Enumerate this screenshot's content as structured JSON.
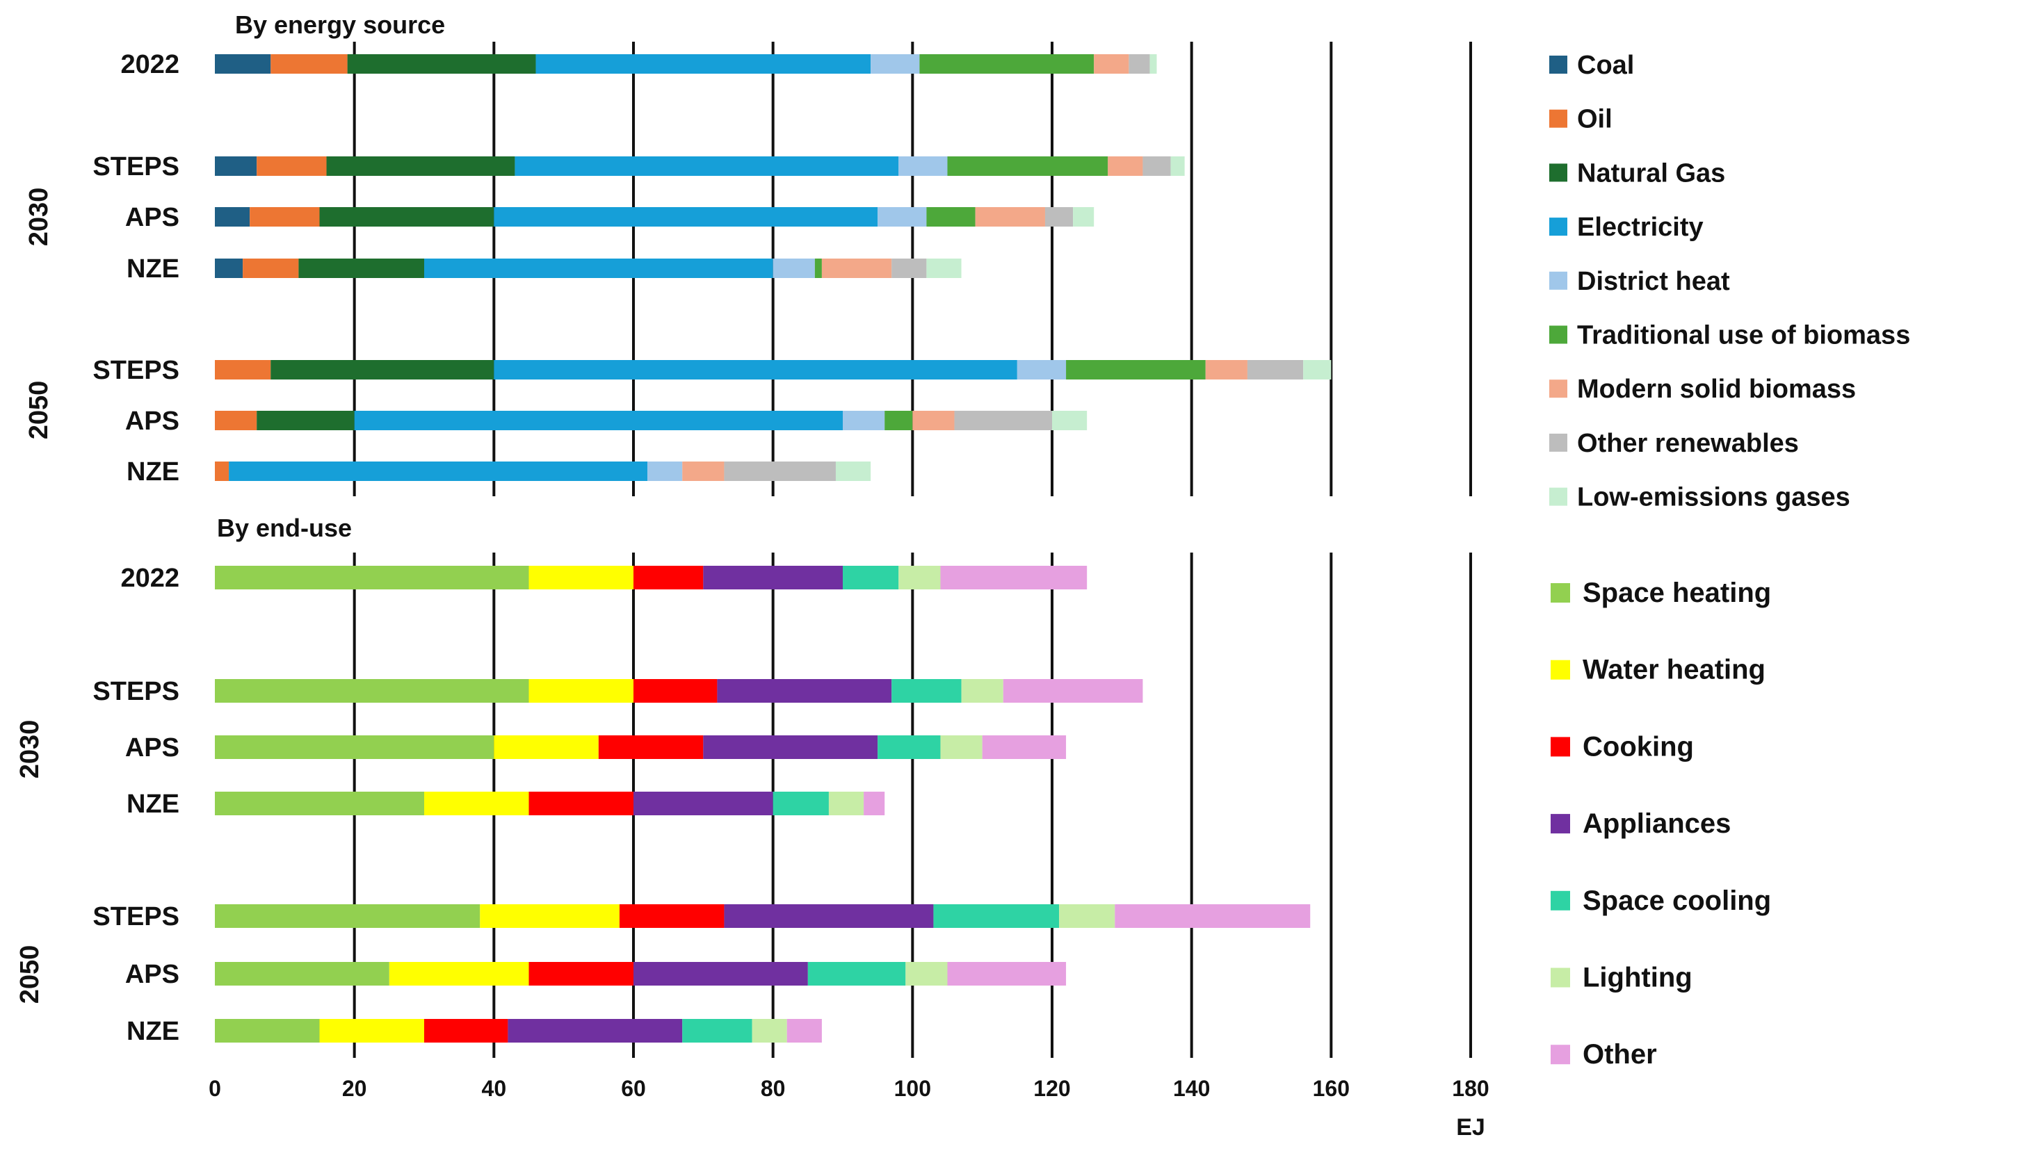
{
  "chart_data": [
    {
      "type": "bar",
      "orientation": "horizontal",
      "stacked": true,
      "title": "By energy source",
      "xlabel": "EJ",
      "xlim": [
        0,
        180
      ],
      "xticks": [
        "0",
        "20",
        "40",
        "60",
        "80",
        "100",
        "120",
        "140",
        "160",
        "180"
      ],
      "groups": [
        "2030",
        "2050"
      ],
      "rows": [
        {
          "label": "2022",
          "group": ""
        },
        {
          "label": "STEPS",
          "group": "2030"
        },
        {
          "label": "APS",
          "group": "2030"
        },
        {
          "label": "NZE",
          "group": "2030"
        },
        {
          "label": "STEPS",
          "group": "2050"
        },
        {
          "label": "APS",
          "group": "2050"
        },
        {
          "label": "NZE",
          "group": "2050"
        }
      ],
      "series": [
        {
          "name": "Coal",
          "color": "#1f5f85",
          "values": [
            8,
            6,
            5,
            4,
            0,
            0,
            0
          ]
        },
        {
          "name": "Oil",
          "color": "#ed7633",
          "values": [
            11,
            10,
            10,
            8,
            8,
            6,
            2
          ]
        },
        {
          "name": "Natural Gas",
          "color": "#1e6e2e",
          "values": [
            27,
            27,
            25,
            18,
            32,
            14,
            0
          ]
        },
        {
          "name": "Electricity",
          "color": "#169fd8",
          "values": [
            48,
            55,
            55,
            50,
            75,
            70,
            60
          ]
        },
        {
          "name": "District heat",
          "color": "#a0c7ea",
          "values": [
            7,
            7,
            7,
            6,
            7,
            6,
            5
          ]
        },
        {
          "name": "Traditional use of biomass",
          "color": "#4da83a",
          "values": [
            25,
            23,
            7,
            1,
            20,
            4,
            0
          ]
        },
        {
          "name": "Modern solid biomass",
          "color": "#f3a889",
          "values": [
            5,
            5,
            10,
            10,
            6,
            6,
            6
          ]
        },
        {
          "name": "Other renewables",
          "color": "#bdbdbd",
          "values": [
            3,
            4,
            4,
            5,
            8,
            14,
            16
          ]
        },
        {
          "name": "Low-emissions gases",
          "color": "#c6eed0",
          "values": [
            1,
            2,
            3,
            5,
            4,
            5,
            5
          ]
        }
      ]
    },
    {
      "type": "bar",
      "orientation": "horizontal",
      "stacked": true,
      "title": "By end-use",
      "xlabel": "EJ",
      "xlim": [
        0,
        180
      ],
      "xticks": [
        "0",
        "20",
        "40",
        "60",
        "80",
        "100",
        "120",
        "140",
        "160",
        "180"
      ],
      "groups": [
        "2030",
        "2050"
      ],
      "rows": [
        {
          "label": "2022",
          "group": ""
        },
        {
          "label": "STEPS",
          "group": "2030"
        },
        {
          "label": "APS",
          "group": "2030"
        },
        {
          "label": "NZE",
          "group": "2030"
        },
        {
          "label": "STEPS",
          "group": "2050"
        },
        {
          "label": "APS",
          "group": "2050"
        },
        {
          "label": "NZE",
          "group": "2050"
        }
      ],
      "series": [
        {
          "name": "Space heating",
          "color": "#92d050",
          "values": [
            45,
            45,
            40,
            30,
            38,
            25,
            15
          ]
        },
        {
          "name": "Water heating",
          "color": "#ffff00",
          "values": [
            15,
            15,
            15,
            15,
            20,
            20,
            15
          ]
        },
        {
          "name": "Cooking",
          "color": "#ff0000",
          "values": [
            10,
            12,
            15,
            15,
            15,
            15,
            12
          ]
        },
        {
          "name": "Appliances",
          "color": "#7030a0",
          "values": [
            20,
            25,
            25,
            20,
            30,
            25,
            25
          ]
        },
        {
          "name": "Space cooling",
          "color": "#2ed3a4",
          "values": [
            8,
            10,
            9,
            8,
            18,
            14,
            10
          ]
        },
        {
          "name": "Lighting",
          "color": "#c7eda6",
          "values": [
            6,
            6,
            6,
            5,
            8,
            6,
            5
          ]
        },
        {
          "name": "Other",
          "color": "#e6a0e0",
          "values": [
            21,
            20,
            12,
            3,
            28,
            17,
            5
          ]
        }
      ]
    }
  ]
}
